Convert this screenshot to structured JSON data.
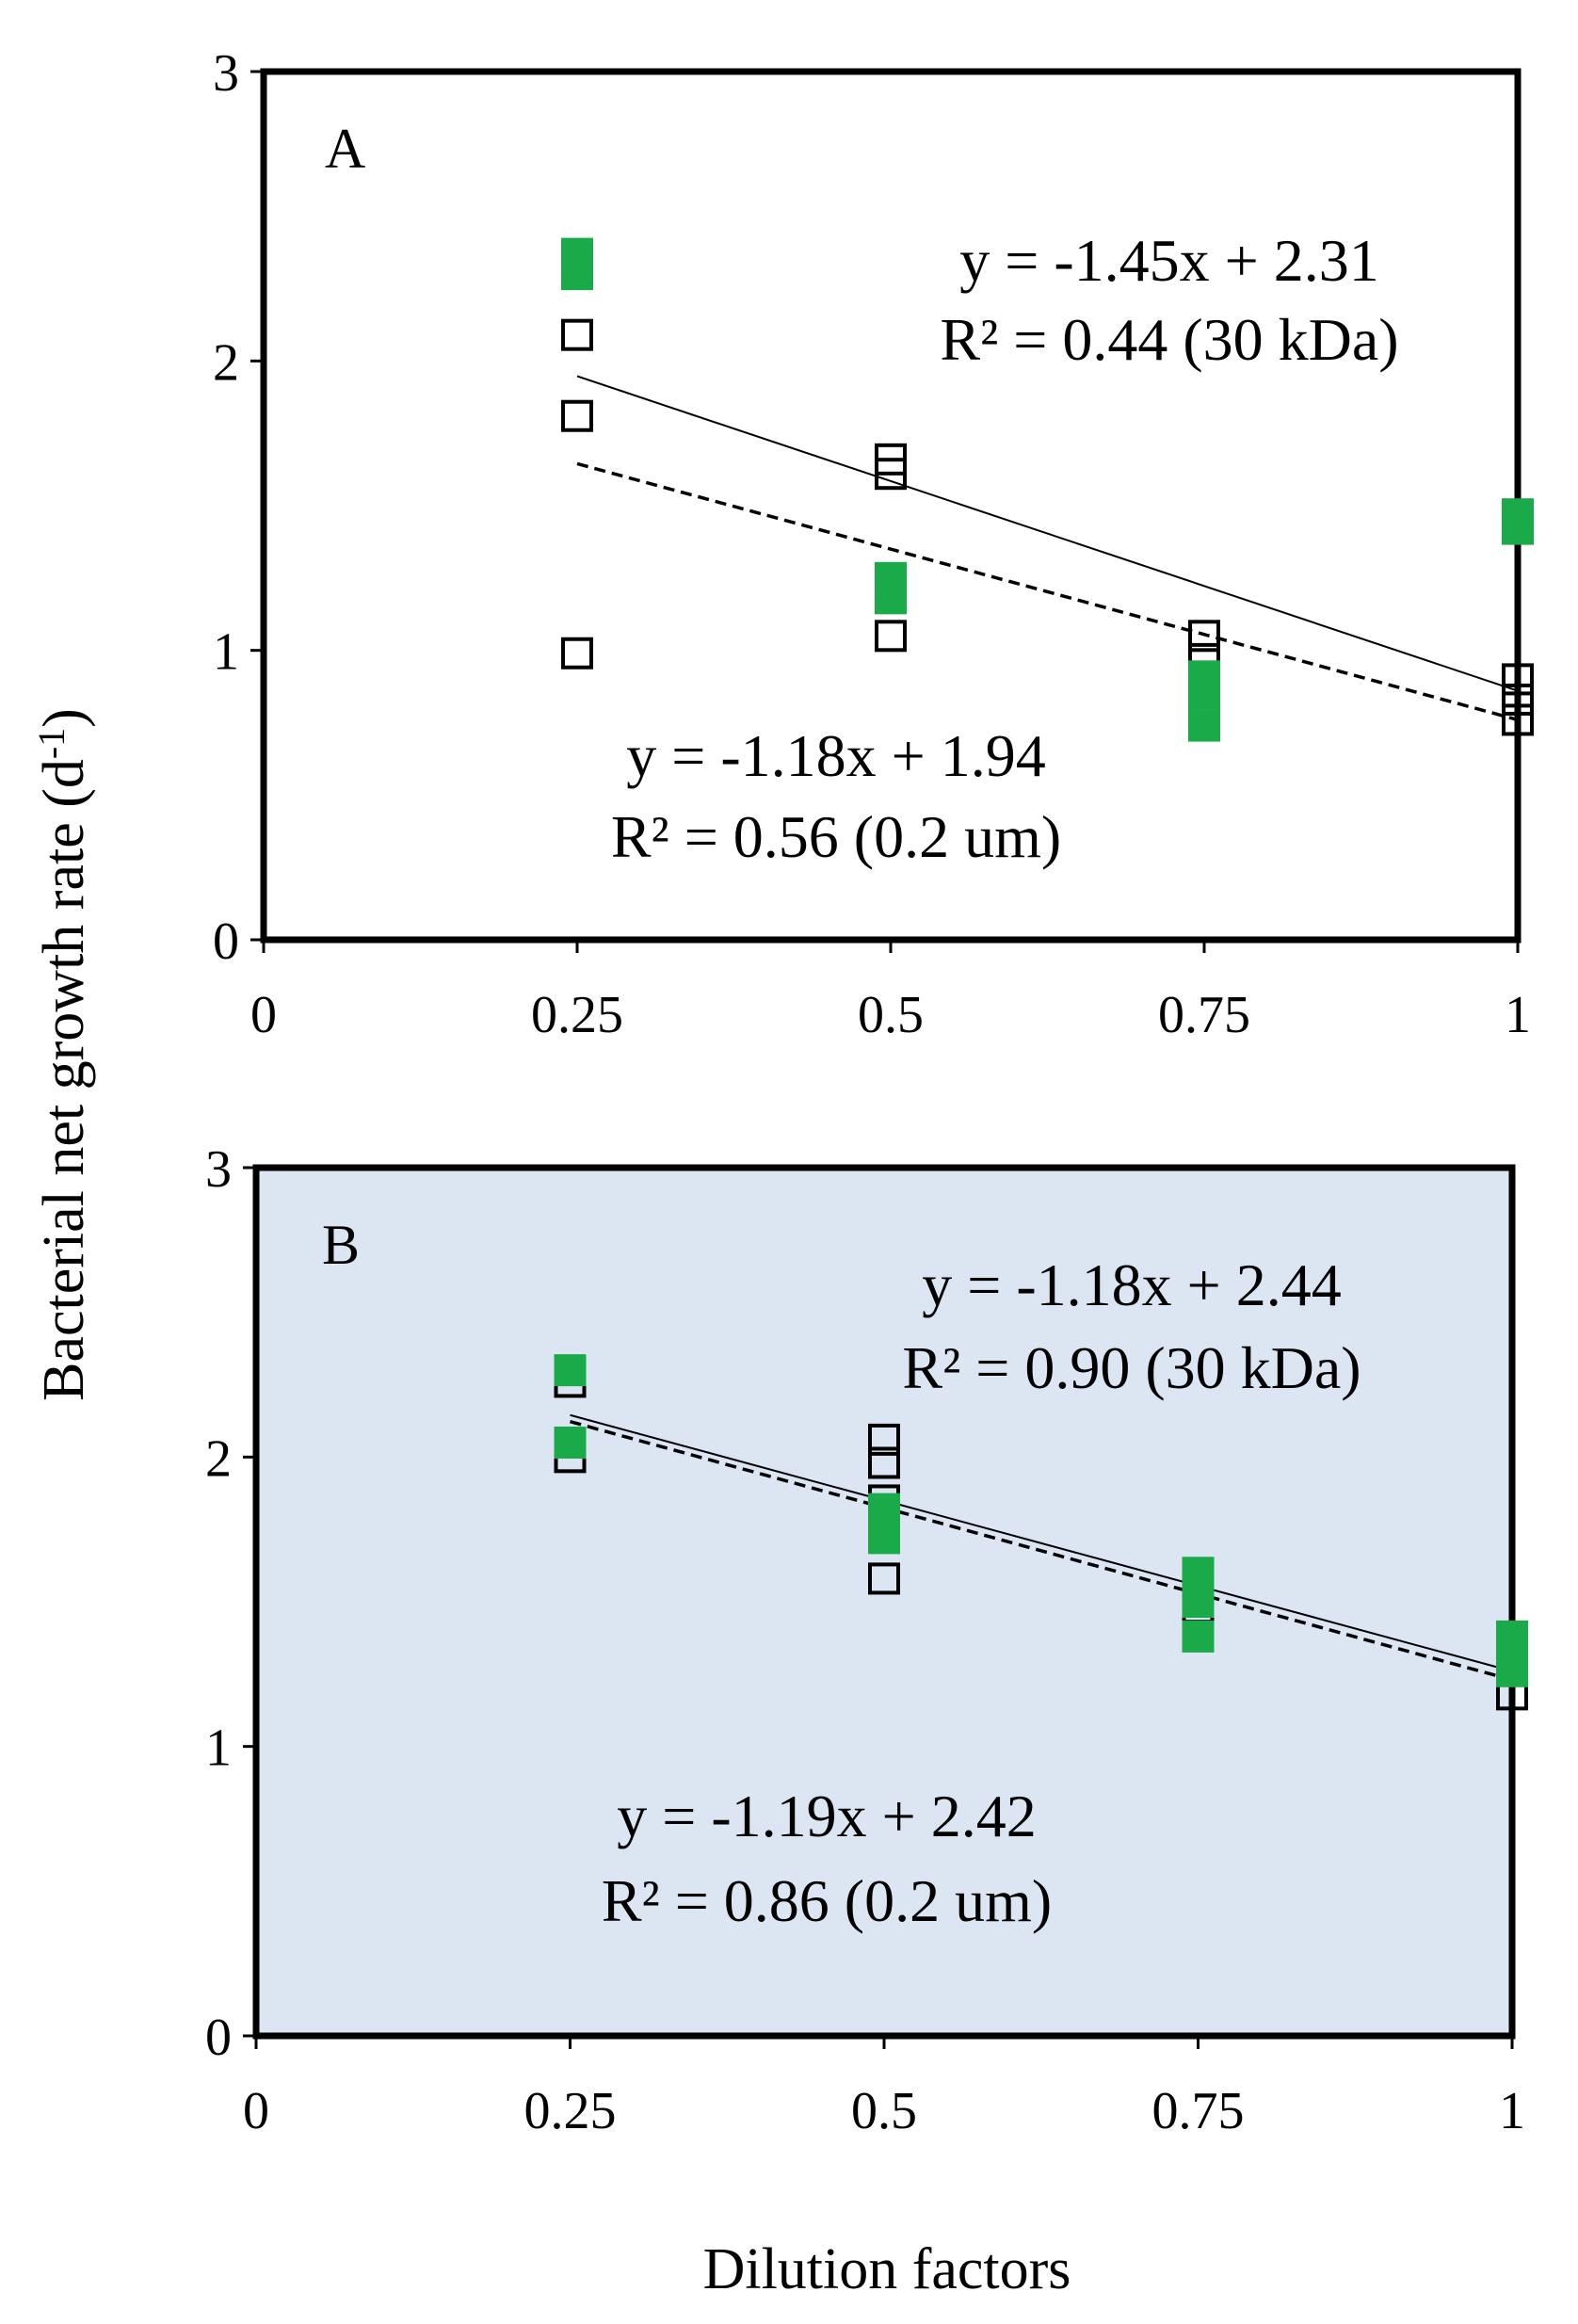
{
  "shared": {
    "ylabel_main": "Bacterial net growth rate (d",
    "ylabel_sup": "-1",
    "ylabel_close": ")",
    "xlabel": "Dilution factors",
    "open_marker_color": "#000000",
    "filled_marker_color": "#1aaa4a",
    "panel_b_background": "#dce6f2"
  },
  "chart_data": [
    {
      "type": "scatter",
      "panel": "A",
      "title": "",
      "xlabel": "Dilution factors",
      "ylabel": "Bacterial net growth rate (d-1)",
      "xlim": [
        0,
        1
      ],
      "ylim": [
        0,
        3
      ],
      "xticks": [
        0,
        0.25,
        0.5,
        0.75,
        1
      ],
      "xtick_labels": [
        "0",
        "0.25",
        "0.5",
        "0.75",
        "1"
      ],
      "yticks": [
        0,
        1,
        2,
        3
      ],
      "ytick_labels": [
        "0",
        "1",
        "2",
        "3"
      ],
      "background": "#ffffff",
      "series": [
        {
          "name": "0.2 um",
          "marker": "open-square",
          "x": [
            0.25,
            0.25,
            0.25,
            0.5,
            0.5,
            0.5,
            0.75,
            0.75,
            0.75,
            1,
            1,
            1
          ],
          "y": [
            2.09,
            1.81,
            0.99,
            1.66,
            1.61,
            1.05,
            1.05,
            0.97,
            0.8,
            0.9,
            0.83,
            0.76
          ]
        },
        {
          "name": "30 kDa",
          "marker": "filled-square",
          "x": [
            0.25,
            0.25,
            0.5,
            0.5,
            0.75,
            0.75,
            0.75,
            1,
            1
          ],
          "y": [
            2.37,
            2.3,
            1.25,
            1.18,
            0.91,
            0.85,
            0.74,
            1.47,
            1.42
          ]
        }
      ],
      "fits": [
        {
          "series": "30 kDa",
          "style": "solid",
          "slope": -1.45,
          "intercept": 2.31,
          "x_range": [
            0.25,
            1
          ],
          "equation": "y = -1.45x + 2.31",
          "r2": "R² = 0.44 (30 kDa)",
          "placement": "upper-right"
        },
        {
          "series": "0.2 um",
          "style": "dashed",
          "slope": -1.18,
          "intercept": 1.94,
          "x_range": [
            0.25,
            1
          ],
          "equation": "y = -1.18x + 1.94",
          "r2": "R² = 0.56 (0.2 um)",
          "placement": "lower-center"
        }
      ],
      "panel_label": "A",
      "legend": "none",
      "grid": false
    },
    {
      "type": "scatter",
      "panel": "B",
      "title": "",
      "xlabel": "Dilution factors",
      "ylabel": "Bacterial net growth rate (d-1)",
      "xlim": [
        0,
        1
      ],
      "ylim": [
        0,
        3
      ],
      "xticks": [
        0,
        0.25,
        0.5,
        0.75,
        1
      ],
      "xtick_labels": [
        "0",
        "0.25",
        "0.5",
        "0.75",
        "1"
      ],
      "yticks": [
        0,
        1,
        2,
        3
      ],
      "ytick_labels": [
        "0",
        "1",
        "2",
        "3"
      ],
      "background": "#dce6f2",
      "series": [
        {
          "name": "0.2 um",
          "marker": "open-square",
          "x": [
            0.25,
            0.25,
            0.5,
            0.5,
            0.5,
            0.5,
            0.75,
            1,
            1
          ],
          "y": [
            2.26,
            2.0,
            2.06,
            1.98,
            1.85,
            1.58,
            1.48,
            1.3,
            1.18
          ]
        },
        {
          "name": "30 kDa",
          "marker": "filled-square",
          "x": [
            0.25,
            0.25,
            0.5,
            0.5,
            0.75,
            0.75,
            0.75,
            1,
            1,
            1
          ],
          "y": [
            2.3,
            2.05,
            1.82,
            1.72,
            1.6,
            1.5,
            1.38,
            1.38,
            1.32,
            1.26
          ]
        }
      ],
      "fits": [
        {
          "series": "30 kDa",
          "style": "solid",
          "slope": -1.18,
          "intercept": 2.44,
          "x_range": [
            0.25,
            1
          ],
          "equation": "y = -1.18x + 2.44",
          "r2": "R² = 0.90 (30 kDa)",
          "placement": "upper-right"
        },
        {
          "series": "0.2 um",
          "style": "dashed",
          "slope": -1.19,
          "intercept": 2.42,
          "x_range": [
            0.25,
            1
          ],
          "equation": "y = -1.19x + 2.42",
          "r2": "R² = 0.86 (0.2 um)",
          "placement": "lower-center"
        }
      ],
      "panel_label": "B",
      "legend": "none",
      "grid": false
    }
  ]
}
